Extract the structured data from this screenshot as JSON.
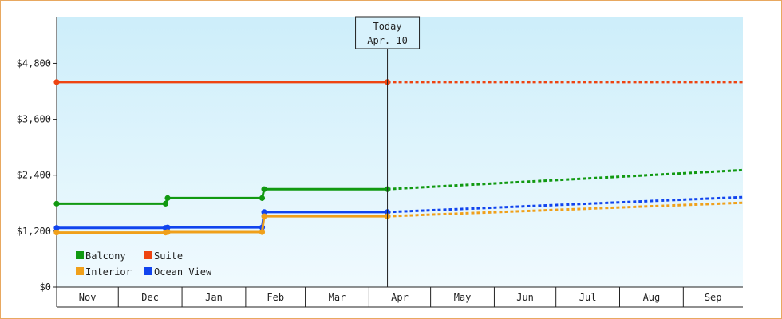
{
  "chart_data": {
    "type": "line",
    "today_marker": {
      "line1": "Today",
      "line2": "Apr. 10",
      "date": "2024-04-10"
    },
    "x_start": "2023-11-01",
    "x_end": "2024-09-30",
    "months": [
      "Nov",
      "Dec",
      "Jan",
      "Feb",
      "Mar",
      "Apr",
      "May",
      "Jun",
      "Jul",
      "Aug",
      "Sep"
    ],
    "ylim": [
      0,
      5800
    ],
    "yticks": [
      {
        "value": 0,
        "label": "$0"
      },
      {
        "value": 1200,
        "label": "$1,200"
      },
      {
        "value": 2400,
        "label": "$2,400"
      },
      {
        "value": 3600,
        "label": "$3,600"
      },
      {
        "value": 4800,
        "label": "$4,800"
      }
    ],
    "series": [
      {
        "name": "Suite",
        "color": "#ee4411",
        "points": [
          [
            "2023-11-01",
            4400
          ],
          [
            "2024-04-10",
            4400
          ]
        ],
        "projection": [
          [
            "2024-04-10",
            4400
          ],
          [
            "2024-09-30",
            4400
          ]
        ]
      },
      {
        "name": "Balcony",
        "color": "#119911",
        "points": [
          [
            "2023-11-01",
            1790
          ],
          [
            "2023-12-24",
            1790
          ],
          [
            "2023-12-25",
            1910
          ],
          [
            "2024-02-09",
            1910
          ],
          [
            "2024-02-10",
            2100
          ],
          [
            "2024-04-10",
            2100
          ]
        ],
        "projection": [
          [
            "2024-04-10",
            2100
          ],
          [
            "2024-09-30",
            2510
          ]
        ]
      },
      {
        "name": "Ocean View",
        "color": "#1144ee",
        "points": [
          [
            "2023-11-01",
            1270
          ],
          [
            "2023-12-24",
            1270
          ],
          [
            "2023-12-25",
            1280
          ],
          [
            "2024-02-09",
            1280
          ],
          [
            "2024-02-10",
            1610
          ],
          [
            "2024-04-10",
            1610
          ]
        ],
        "projection": [
          [
            "2024-04-10",
            1610
          ],
          [
            "2024-09-30",
            1930
          ]
        ]
      },
      {
        "name": "Interior",
        "color": "#f0a01a",
        "points": [
          [
            "2023-11-01",
            1170
          ],
          [
            "2023-12-24",
            1170
          ],
          [
            "2023-12-25",
            1180
          ],
          [
            "2024-02-09",
            1180
          ],
          [
            "2024-02-10",
            1520
          ],
          [
            "2024-04-10",
            1520
          ]
        ],
        "projection": [
          [
            "2024-04-10",
            1520
          ],
          [
            "2024-09-30",
            1810
          ]
        ]
      }
    ],
    "legend": [
      [
        "Balcony",
        "Suite"
      ],
      [
        "Interior",
        "Ocean View"
      ]
    ],
    "legend_position": "bottom-left"
  }
}
